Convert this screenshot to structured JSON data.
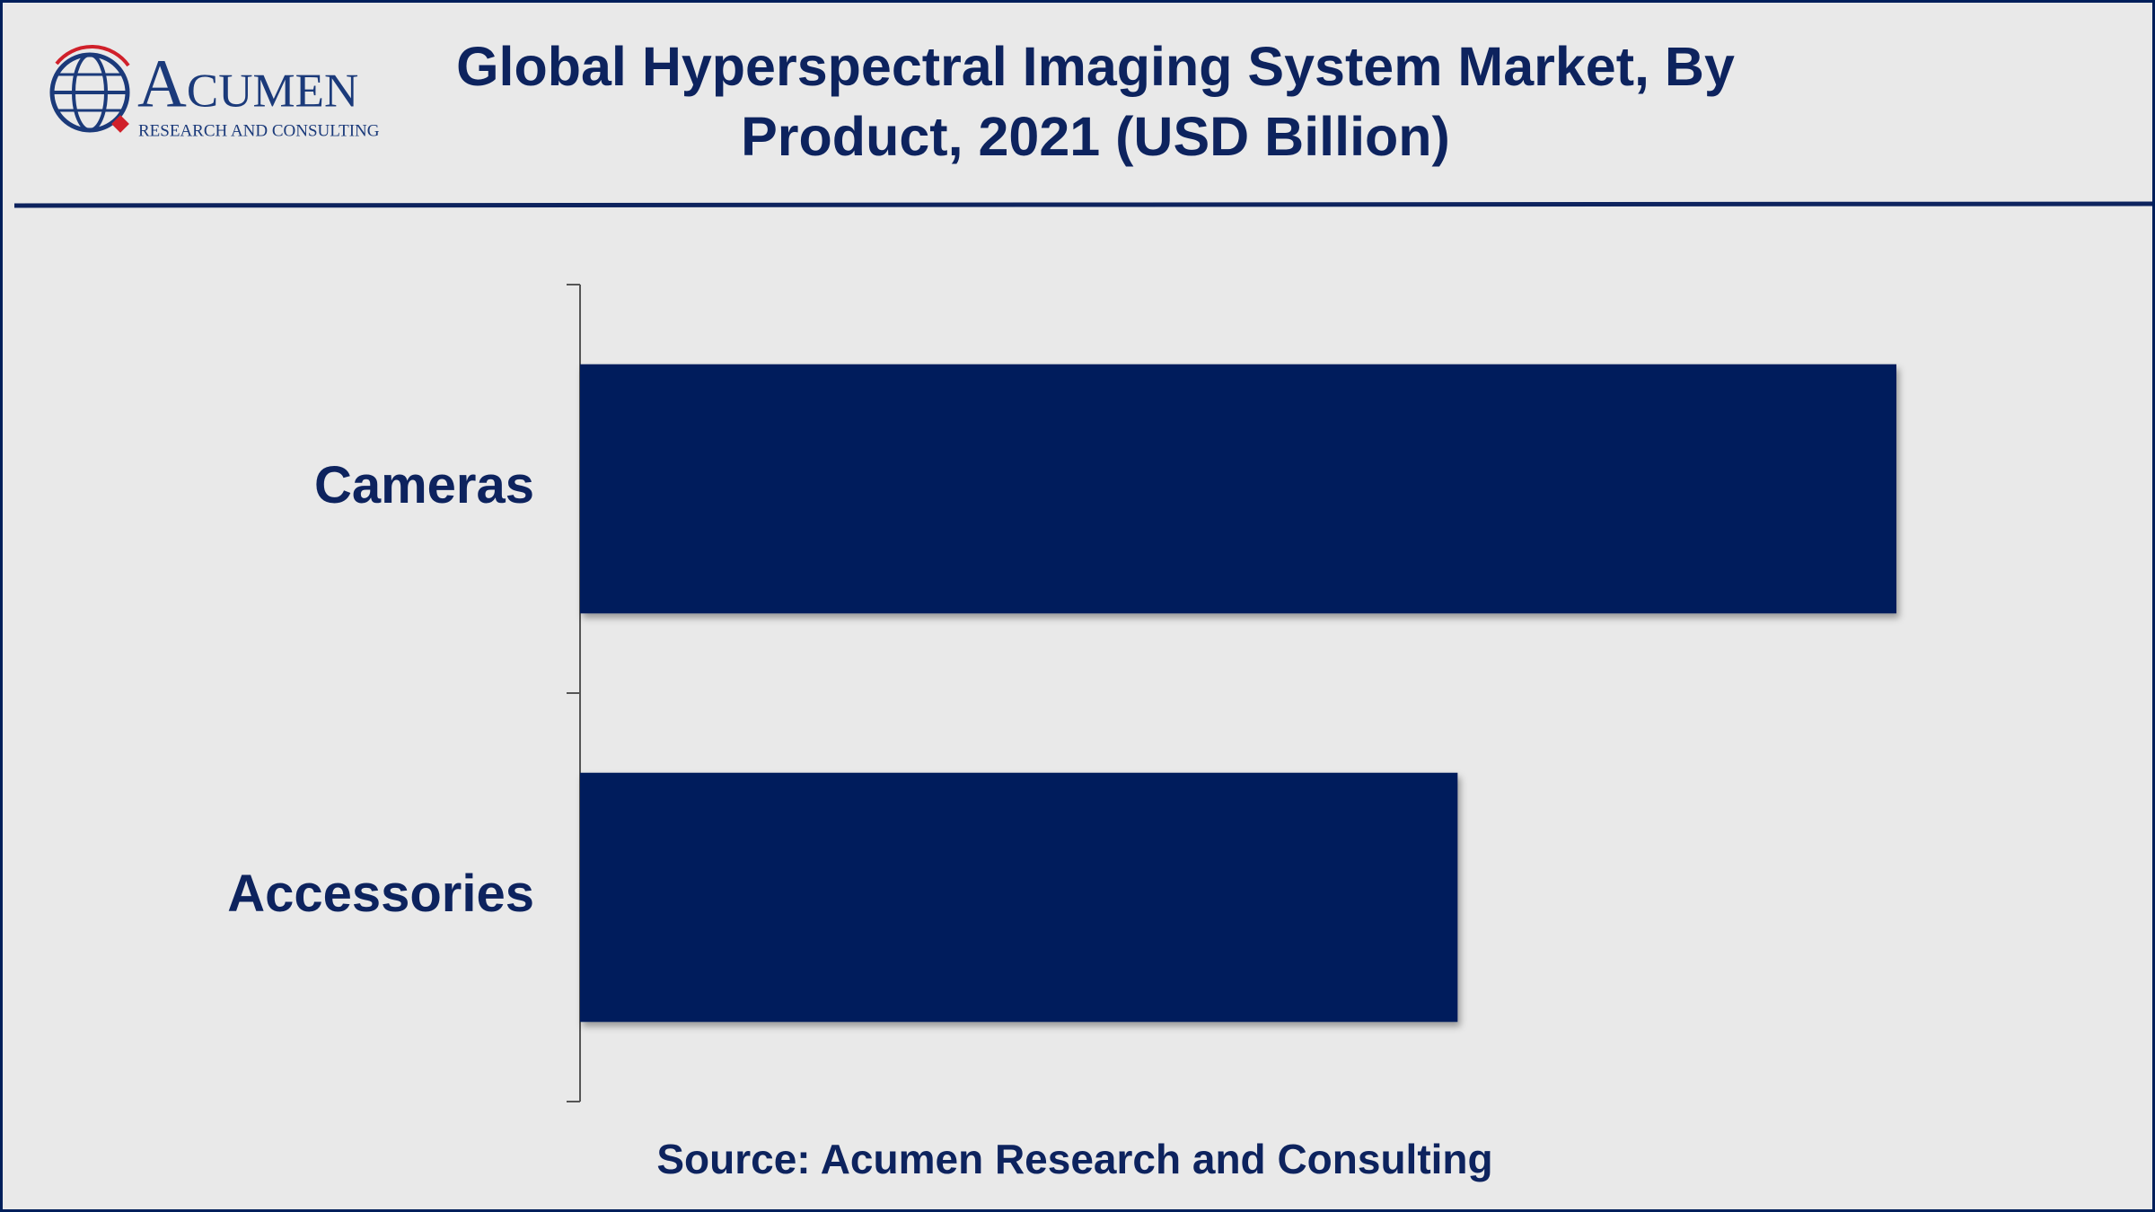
{
  "logo": {
    "name": "Acumen",
    "tagline": "RESEARCH AND CONSULTING"
  },
  "chart_data": {
    "type": "bar",
    "orientation": "horizontal",
    "title": "Global Hyperspectral Imaging System Market, By Product, 2021 (USD Billion)",
    "categories": [
      "Cameras",
      "Accessories"
    ],
    "values": [
      7.2,
      4.8
    ],
    "color": "#001f5b",
    "source": "Source: Acumen Research and Consulting"
  }
}
